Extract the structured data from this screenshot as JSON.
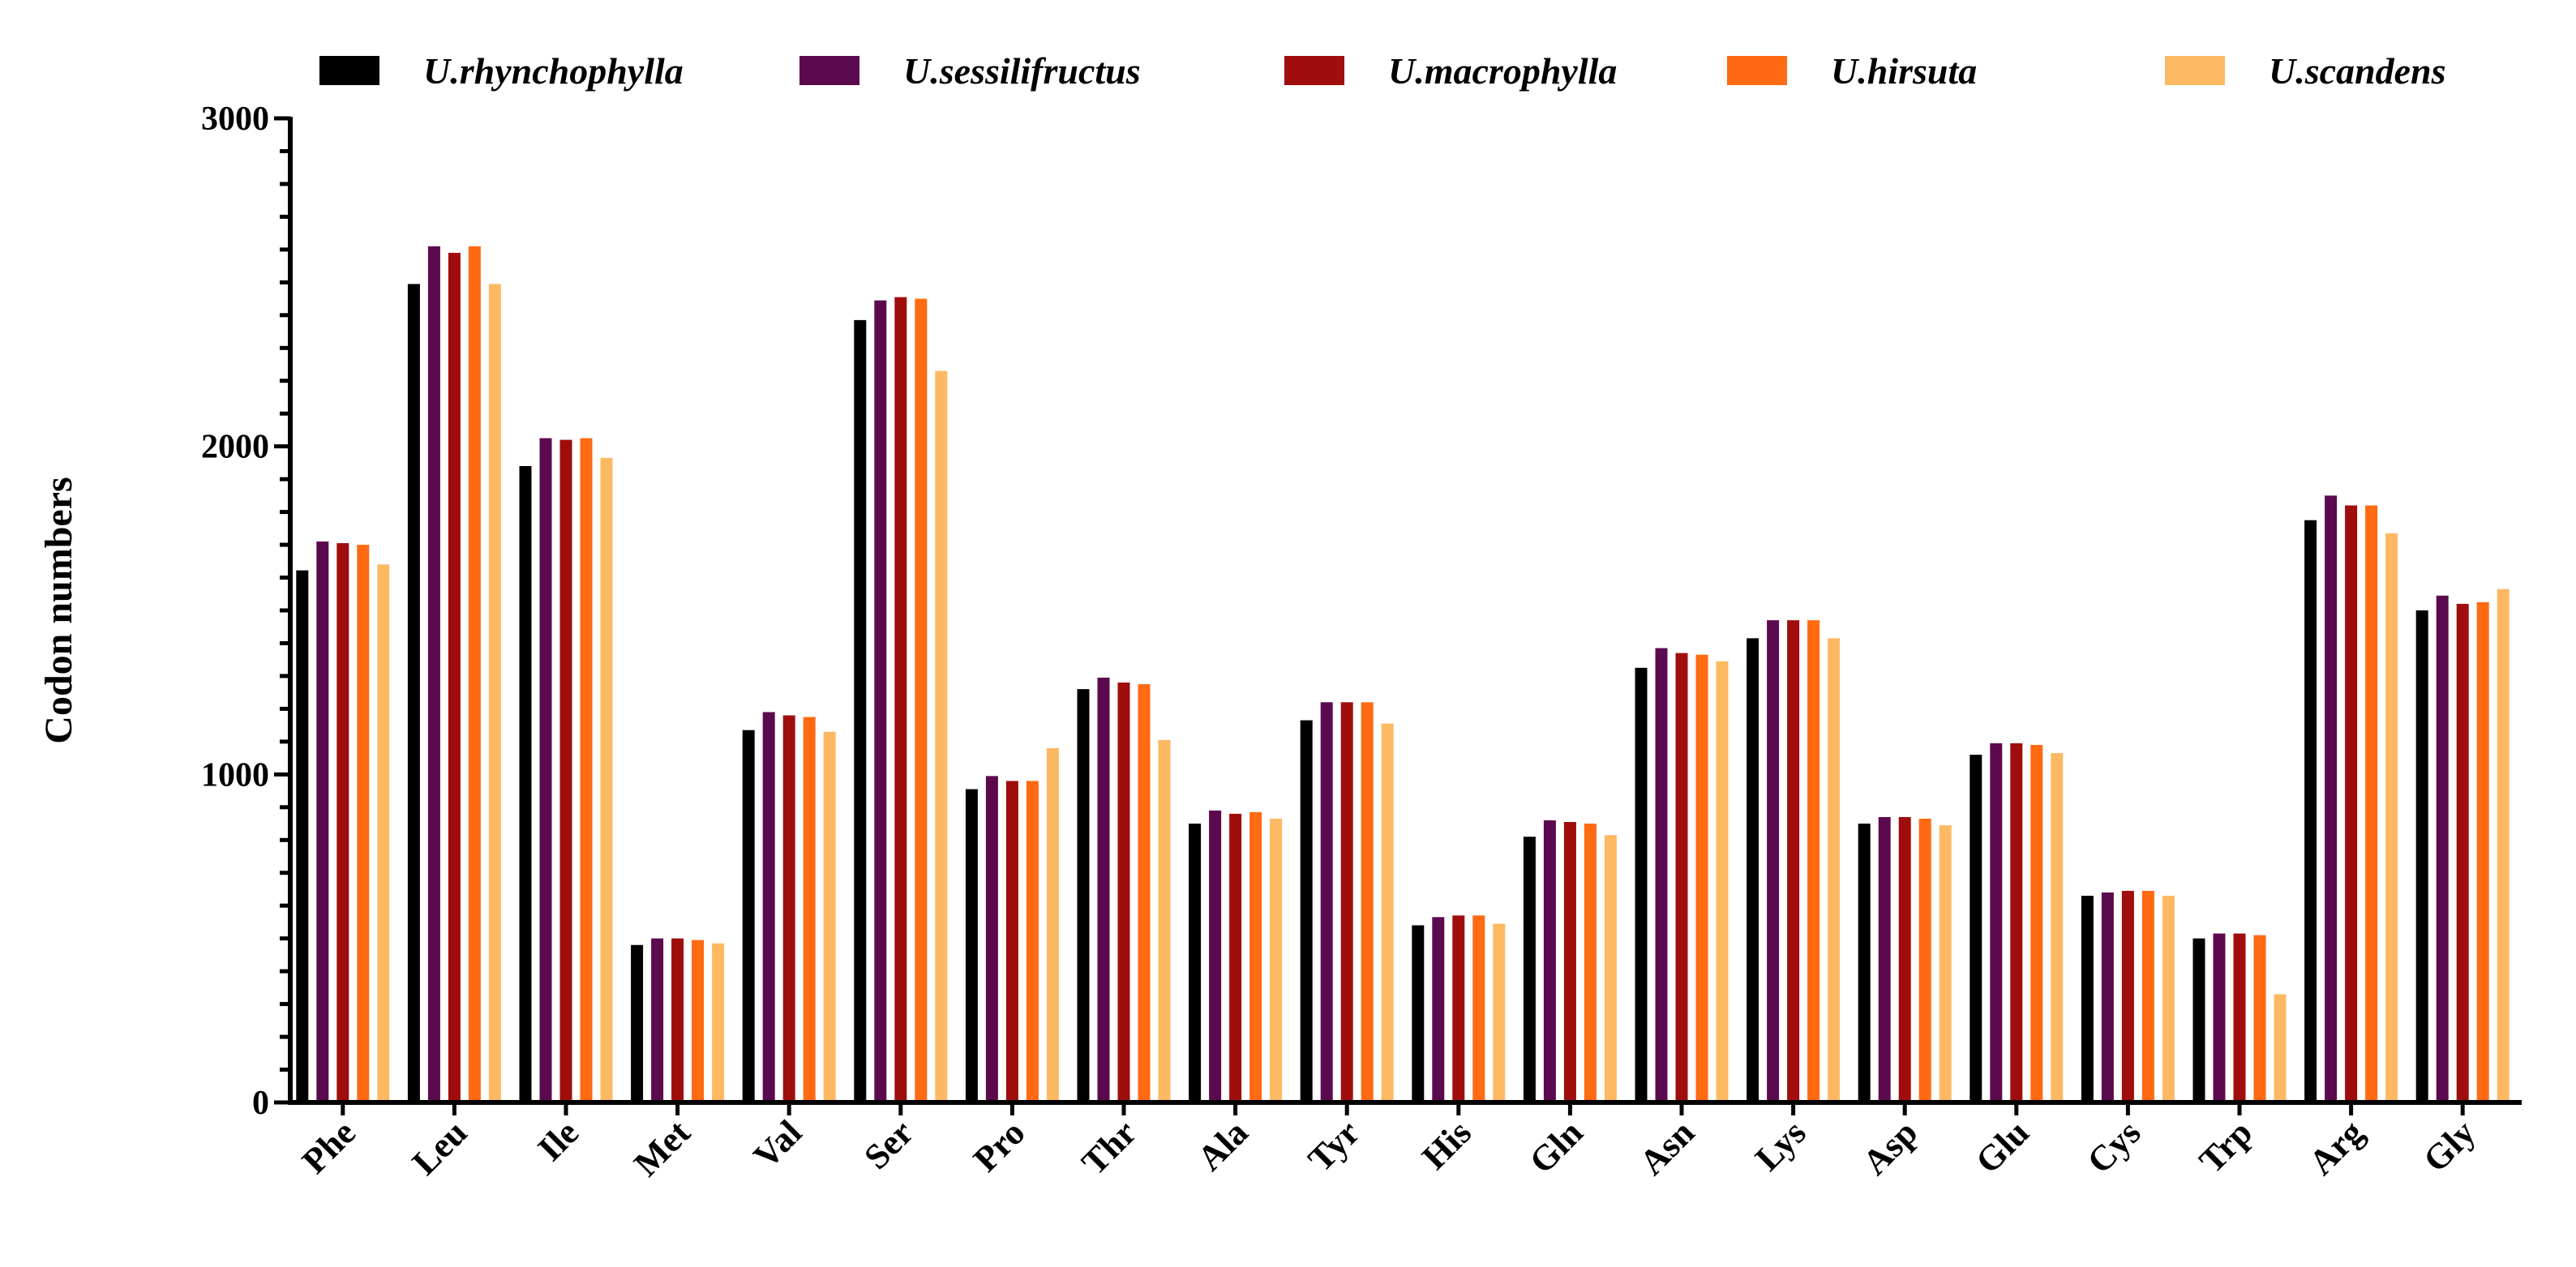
{
  "chart_data": {
    "type": "bar",
    "title": "",
    "xlabel": "",
    "ylabel": "Codon numbers",
    "ylim": [
      0,
      3000
    ],
    "yticks": [
      0,
      1000,
      2000,
      3000
    ],
    "grid": false,
    "legend_position": "top",
    "categories": [
      "Phe",
      "Leu",
      "Ile",
      "Met",
      "Val",
      "Ser",
      "Pro",
      "Thr",
      "Ala",
      "Tyr",
      "His",
      "Gln",
      "Asn",
      "Lys",
      "Asp",
      "Glu",
      "Cys",
      "Trp",
      "Arg",
      "Gly"
    ],
    "series": [
      {
        "name": "U.rhynchophylla",
        "color": "#000000",
        "values": [
          1622,
          2495,
          1940,
          480,
          1135,
          2385,
          955,
          1260,
          850,
          1165,
          540,
          810,
          1325,
          1415,
          850,
          1060,
          630,
          500,
          1775,
          1500
        ]
      },
      {
        "name": "U.sessilifructus",
        "color": "#5c0a4e",
        "values": [
          1710,
          2610,
          2025,
          500,
          1190,
          2445,
          995,
          1295,
          890,
          1220,
          565,
          860,
          1385,
          1470,
          870,
          1095,
          640,
          515,
          1850,
          1545
        ]
      },
      {
        "name": "U.macrophylla",
        "color": "#a00d0d",
        "values": [
          1705,
          2590,
          2020,
          500,
          1180,
          2455,
          980,
          1280,
          880,
          1220,
          570,
          855,
          1370,
          1470,
          870,
          1095,
          645,
          515,
          1820,
          1520
        ]
      },
      {
        "name": "U.hirsuta",
        "color": "#ff6a12",
        "values": [
          1700,
          2610,
          2025,
          495,
          1175,
          2450,
          980,
          1275,
          885,
          1220,
          570,
          850,
          1365,
          1470,
          865,
          1090,
          645,
          510,
          1820,
          1525
        ]
      },
      {
        "name": "U.scandens",
        "color": "#fdb962",
        "values": [
          1640,
          2495,
          1965,
          485,
          1130,
          2230,
          1080,
          1105,
          865,
          1155,
          545,
          815,
          1345,
          1415,
          845,
          1065,
          630,
          330,
          1735,
          1565
        ]
      }
    ]
  }
}
